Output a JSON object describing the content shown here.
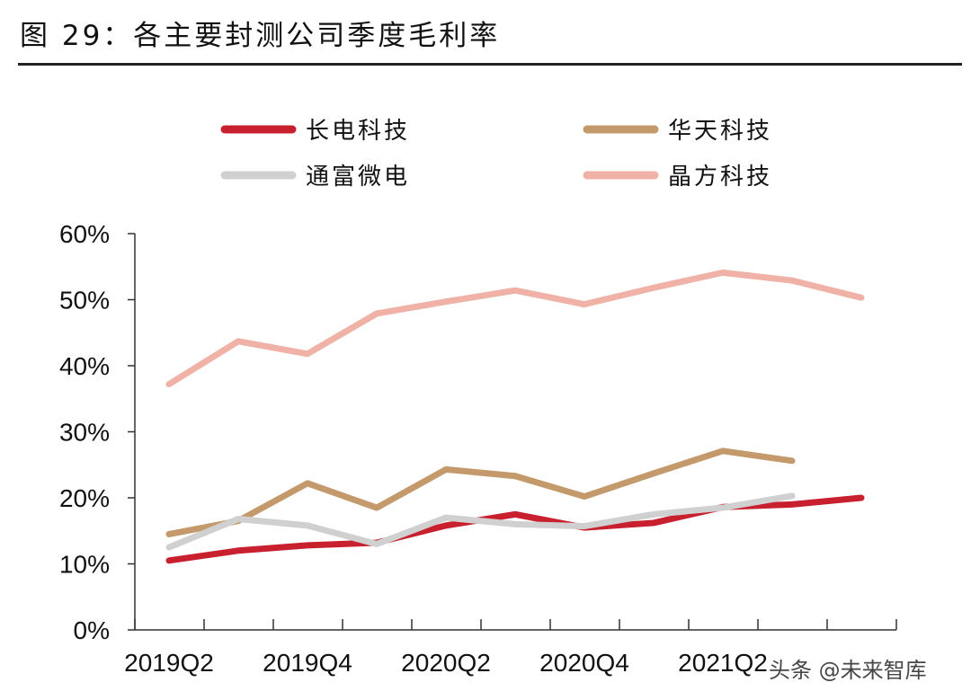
{
  "header": {
    "title": "图 29：各主要封测公司季度毛利率"
  },
  "watermark": "头条 @未来智库",
  "chart_data": {
    "type": "line",
    "title": "图 29：各主要封测公司季度毛利率",
    "xlabel": "",
    "ylabel": "",
    "categories": [
      "2019Q2",
      "2019Q3",
      "2019Q4",
      "2020Q1",
      "2020Q2",
      "2020Q3",
      "2020Q4",
      "2021Q1",
      "2021Q2",
      "2021Q3",
      "2021Q4"
    ],
    "x_tick_labels": [
      "2019Q2",
      "2019Q4",
      "2020Q2",
      "2020Q4",
      "2021Q2"
    ],
    "y_ticks": [
      "0%",
      "10%",
      "20%",
      "30%",
      "40%",
      "50%",
      "60%"
    ],
    "ylim": [
      0,
      60
    ],
    "grid": false,
    "legend_position": "top",
    "series": [
      {
        "name": "长电科技",
        "color": "#c8202e",
        "values": [
          10.5,
          12.0,
          12.8,
          13.2,
          15.8,
          17.5,
          15.5,
          16.2,
          18.6,
          19.0,
          20.0
        ]
      },
      {
        "name": "华天科技",
        "color": "#c49a6c",
        "values": [
          14.5,
          16.5,
          22.2,
          18.5,
          24.3,
          23.3,
          20.2,
          23.7,
          27.1,
          25.6,
          null
        ]
      },
      {
        "name": "通富微电",
        "color": "#d0d0d0",
        "values": [
          12.5,
          16.8,
          15.8,
          13.0,
          17.0,
          16.0,
          15.7,
          17.5,
          18.5,
          20.3,
          null
        ]
      },
      {
        "name": "晶方科技",
        "color": "#f0b2a6",
        "values": [
          37.2,
          43.7,
          41.8,
          47.9,
          49.7,
          51.4,
          49.3,
          51.8,
          54.1,
          52.9,
          50.3
        ]
      }
    ]
  }
}
